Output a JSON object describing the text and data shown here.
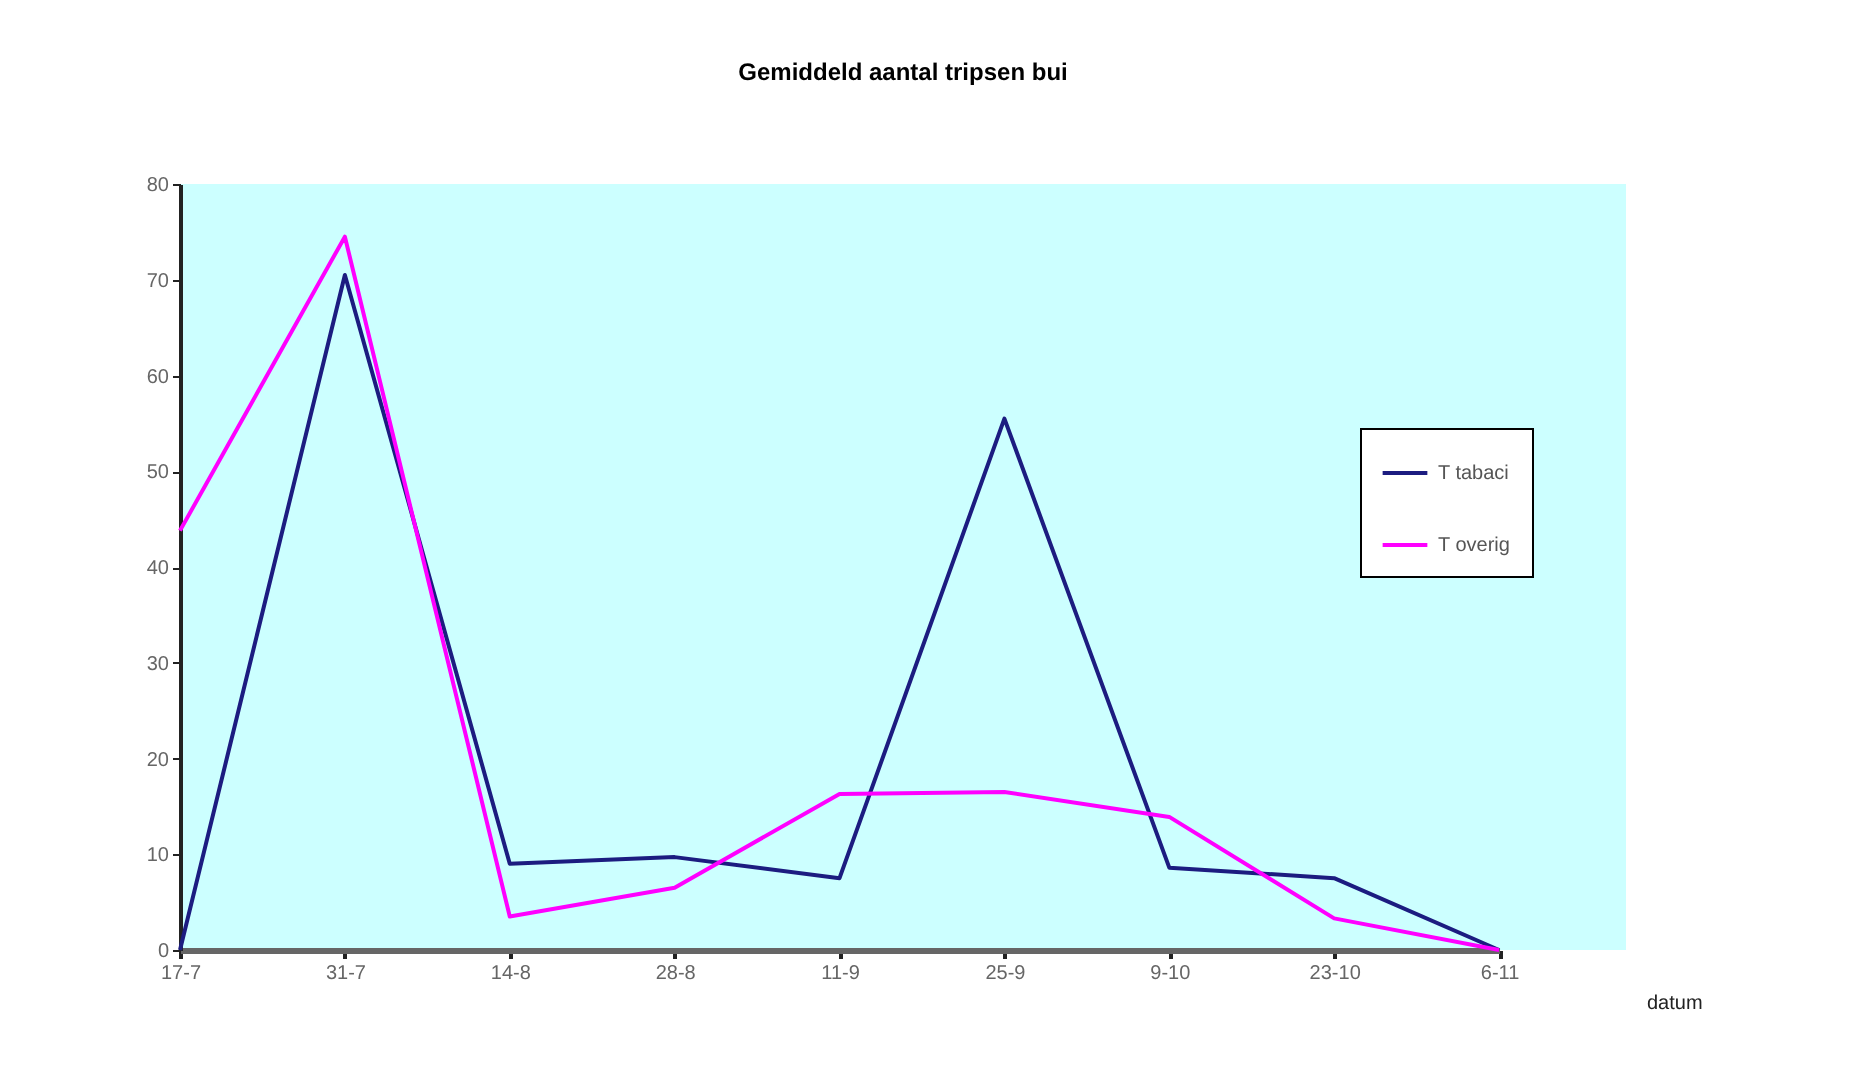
{
  "chart_data": {
    "type": "line",
    "title": "Gemiddeld aantal tripsen bui",
    "xlabel": "datum",
    "categories": [
      "17-7",
      "31-7",
      "14-8",
      "28-8",
      "11-9",
      "25-9",
      "9-10",
      "23-10",
      "6-11"
    ],
    "series": [
      {
        "name": "T tabaci",
        "color": "#1c1c80",
        "values": [
          0,
          70.5,
          9,
          9.7,
          7.5,
          55.5,
          8.6,
          7.5,
          0
        ]
      },
      {
        "name": "T overig",
        "color": "#ff00ff",
        "values": [
          43.8,
          74.5,
          3.5,
          6.5,
          16.3,
          16.5,
          13.9,
          3.3,
          0
        ]
      }
    ],
    "ylim": [
      0,
      80
    ],
    "yticks": [
      0,
      10,
      20,
      30,
      40,
      50,
      60,
      70,
      80
    ],
    "grid": false,
    "legend": "right",
    "marker": "none"
  }
}
